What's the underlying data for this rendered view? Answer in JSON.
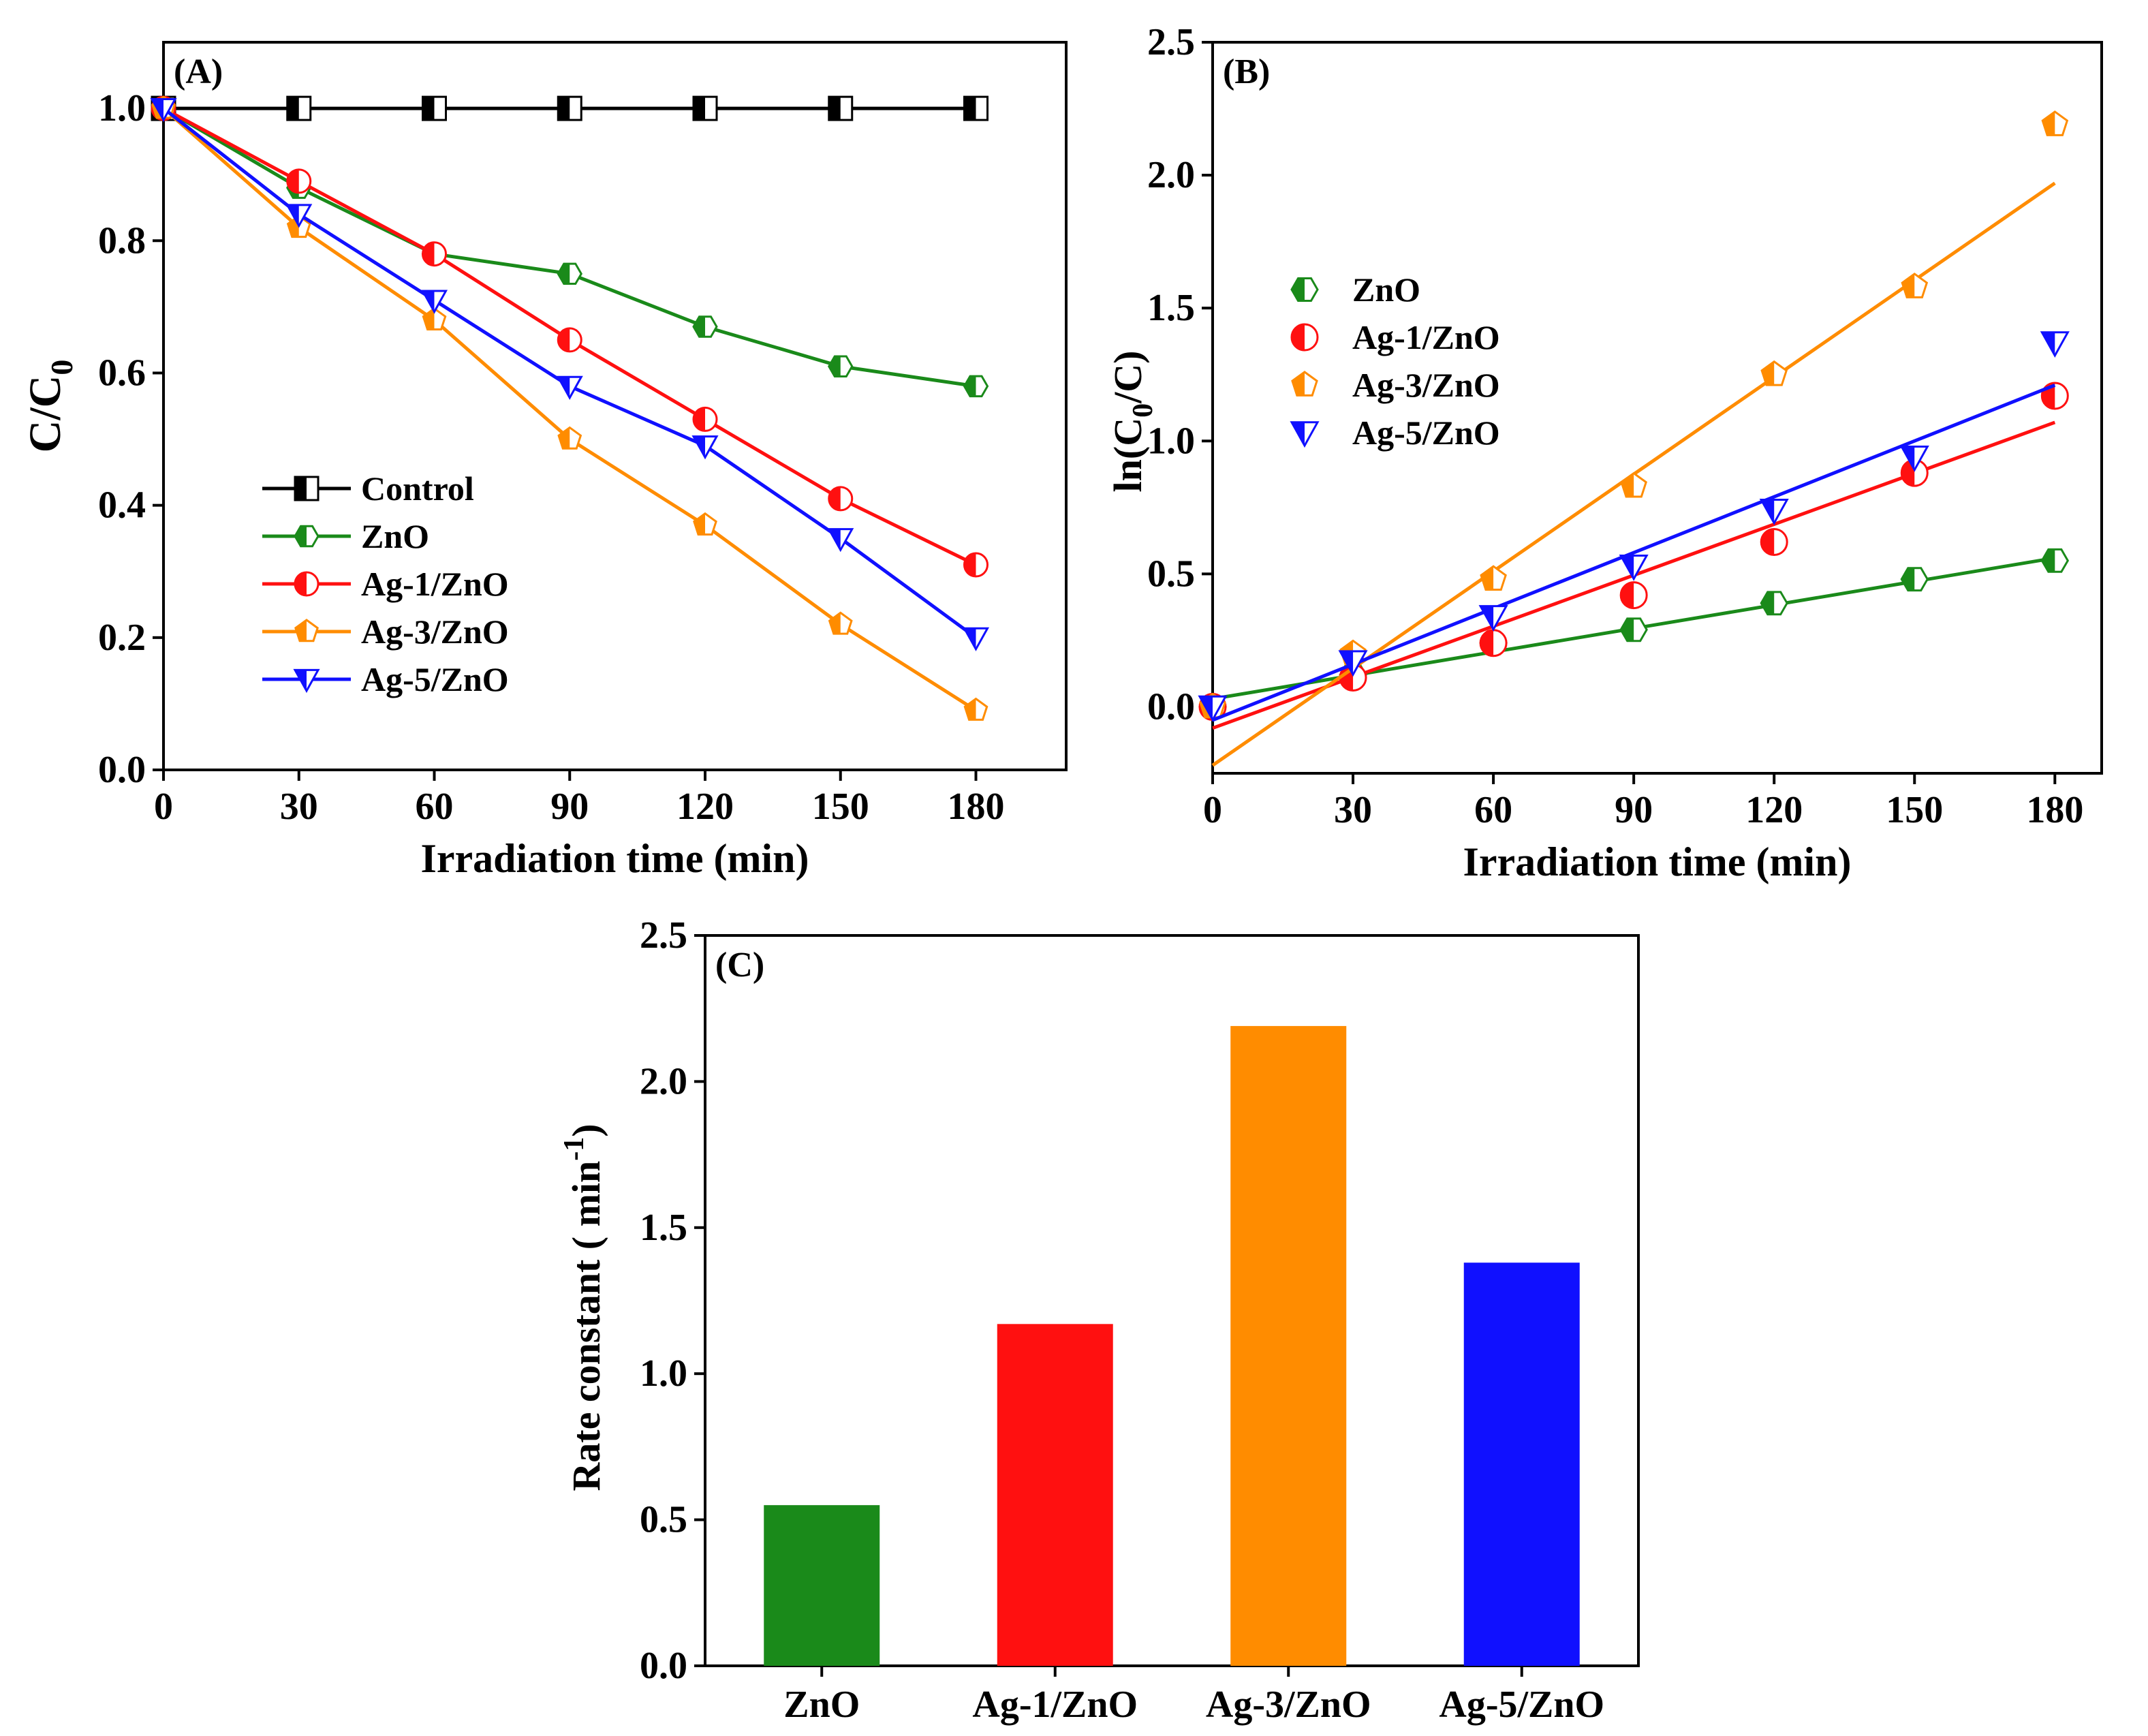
{
  "colors": {
    "control": "#000000",
    "zno": "#1a8a1a",
    "ag1": "#ff1010",
    "ag3": "#ff8c00",
    "ag5": "#1010ff"
  },
  "chart_data": [
    {
      "id": "A",
      "type": "line",
      "panel_label": "(A)",
      "xlabel": "Irradiation time (min)",
      "ylabel": "C/C",
      "ylabel_sub": "0",
      "xlim": [
        0,
        200
      ],
      "ylim": [
        0,
        1.1
      ],
      "xticks": [
        0,
        30,
        60,
        90,
        120,
        150,
        180
      ],
      "xtick_labels": [
        "0",
        "30",
        "60",
        "90",
        "120",
        "150",
        "180"
      ],
      "yticks": [
        0,
        0.2,
        0.4,
        0.6,
        0.8,
        1.0
      ],
      "ytick_labels": [
        "0.0",
        "0.2",
        "0.4",
        "0.6",
        "0.8",
        "1.0"
      ],
      "x": [
        0,
        30,
        60,
        90,
        120,
        150,
        180
      ],
      "legend_position": "bottom-left",
      "series": [
        {
          "name": "Control",
          "key": "control",
          "marker": "square",
          "values": [
            1.0,
            1.0,
            1.0,
            1.0,
            1.0,
            1.0,
            1.0
          ]
        },
        {
          "name": "ZnO",
          "key": "zno",
          "marker": "hexagon",
          "values": [
            1.0,
            0.88,
            0.78,
            0.75,
            0.67,
            0.61,
            0.58
          ]
        },
        {
          "name": "Ag-1/ZnO",
          "key": "ag1",
          "marker": "circle",
          "values": [
            1.0,
            0.89,
            0.78,
            0.65,
            0.53,
            0.41,
            0.31
          ]
        },
        {
          "name": "Ag-3/ZnO",
          "key": "ag3",
          "marker": "pentagon",
          "values": [
            1.0,
            0.82,
            0.68,
            0.5,
            0.37,
            0.22,
            0.09
          ]
        },
        {
          "name": "Ag-5/ZnO",
          "key": "ag5",
          "marker": "triangle-down",
          "values": [
            1.0,
            0.84,
            0.71,
            0.58,
            0.49,
            0.35,
            0.2
          ]
        }
      ]
    },
    {
      "id": "B",
      "type": "scatter",
      "panel_label": "(B)",
      "xlabel": "Irradiation time (min)",
      "ylabel_parts": [
        "ln(C",
        "0",
        "/C)"
      ],
      "xlim": [
        0,
        190
      ],
      "ylim": [
        -0.25,
        2.5
      ],
      "xticks": [
        0,
        30,
        60,
        90,
        120,
        150,
        180
      ],
      "xtick_labels": [
        "0",
        "30",
        "60",
        "90",
        "120",
        "150",
        "180"
      ],
      "yticks": [
        0,
        0.5,
        1.0,
        1.5,
        2.0,
        2.5
      ],
      "ytick_labels": [
        "0.0",
        "0.5",
        "1.0",
        "1.5",
        "2.0",
        "2.5"
      ],
      "x": [
        0,
        30,
        60,
        90,
        120,
        150,
        180
      ],
      "legend_position": "top-left",
      "series": [
        {
          "name": "ZnO",
          "key": "zno",
          "marker": "hexagon",
          "values": [
            0.0,
            0.12,
            0.24,
            0.29,
            0.39,
            0.48,
            0.55
          ],
          "fit": [
            0.03,
            0.56
          ]
        },
        {
          "name": "Ag-1/ZnO",
          "key": "ag1",
          "marker": "circle",
          "values": [
            0.0,
            0.11,
            0.24,
            0.42,
            0.62,
            0.88,
            1.17
          ],
          "fit": [
            -0.08,
            1.07
          ]
        },
        {
          "name": "Ag-3/ZnO",
          "key": "ag3",
          "marker": "pentagon",
          "values": [
            0.0,
            0.2,
            0.48,
            0.83,
            1.25,
            1.58,
            2.19
          ],
          "fit": [
            -0.22,
            1.97
          ]
        },
        {
          "name": "Ag-5/ZnO",
          "key": "ag5",
          "marker": "triangle-down",
          "values": [
            0.0,
            0.17,
            0.34,
            0.53,
            0.74,
            0.94,
            1.37
          ],
          "fit": [
            -0.05,
            1.21
          ]
        }
      ]
    },
    {
      "id": "C",
      "type": "bar",
      "panel_label": "(C)",
      "ylabel": "Rate constant ( min",
      "ylabel_sup": "-1",
      "ylabel_close": ")",
      "categories": [
        "ZnO",
        "Ag-1/ZnO",
        "Ag-3/ZnO",
        "Ag-5/ZnO"
      ],
      "keys": [
        "zno",
        "ag1",
        "ag3",
        "ag5"
      ],
      "values": [
        0.55,
        1.17,
        2.19,
        1.38
      ],
      "ylim": [
        0,
        2.5
      ],
      "yticks": [
        0,
        0.5,
        1.0,
        1.5,
        2.0,
        2.5
      ],
      "ytick_labels": [
        "0.0",
        "0.5",
        "1.0",
        "1.5",
        "2.0",
        "2.5"
      ]
    }
  ]
}
